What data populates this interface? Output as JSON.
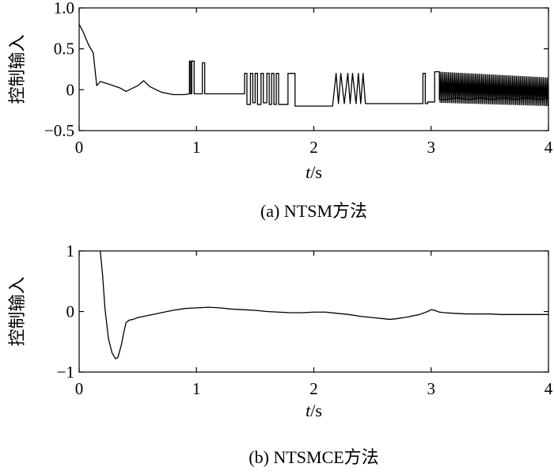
{
  "chart_data": [
    {
      "type": "line",
      "caption": "(a) NTSM方法",
      "ylabel": "控制输入",
      "xlabel_var": "t",
      "xlabel_unit": "/s",
      "xlim": [
        0,
        4
      ],
      "ylim": [
        -0.5,
        1.0
      ],
      "xticks": [
        "0",
        "1",
        "2",
        "3",
        "4"
      ],
      "yticks": [
        {
          "value": 1.0,
          "label": "1.0"
        },
        {
          "value": 0.5,
          "label": "0.5"
        },
        {
          "value": 0,
          "label": "0"
        },
        {
          "value": -0.5,
          "label": "−0.5"
        }
      ],
      "grid": false,
      "series": [
        {
          "line_color": "#000000",
          "x": [
            0,
            0.03,
            0.08,
            0.12,
            0.15,
            0.18,
            0.25,
            0.35,
            0.4,
            0.5,
            0.55,
            0.6,
            0.7,
            0.8,
            0.9,
            0.94,
            0.94,
            0.95,
            0.95,
            0.96,
            0.96,
            0.98,
            0.98,
            1.05,
            1.05,
            1.07,
            1.07,
            1.15,
            1.25,
            1.35,
            1.4,
            1.41,
            1.41,
            1.43,
            1.43,
            1.46,
            1.46,
            1.48,
            1.48,
            1.5,
            1.5,
            1.52,
            1.52,
            1.55,
            1.55,
            1.57,
            1.57,
            1.6,
            1.6,
            1.62,
            1.62,
            1.64,
            1.64,
            1.66,
            1.66,
            1.68,
            1.68,
            1.7,
            1.7,
            1.78,
            1.78,
            1.84,
            1.84,
            1.9,
            2.0,
            2.1,
            2.16,
            2.16,
            2.19,
            2.19,
            2.21,
            2.21,
            2.23,
            2.23,
            2.26,
            2.26,
            2.29,
            2.29,
            2.31,
            2.31,
            2.33,
            2.33,
            2.36,
            2.36,
            2.38,
            2.38,
            2.4,
            2.4,
            2.42,
            2.42,
            2.44,
            2.44,
            2.5,
            2.6,
            2.7,
            2.8,
            2.9,
            2.93,
            2.93,
            2.95,
            2.95,
            2.97,
            2.97,
            3.03,
            3.03,
            3.07,
            3.07,
            3.12,
            3.22,
            3.32,
            3.42,
            3.52,
            3.62,
            3.72,
            3.82,
            3.92,
            4.0
          ],
          "y": [
            0.8,
            0.72,
            0.55,
            0.45,
            0.05,
            0.1,
            0.07,
            0.02,
            -0.02,
            0.05,
            0.11,
            0.04,
            -0.03,
            -0.06,
            -0.06,
            -0.05,
            0.35,
            0.35,
            -0.05,
            -0.05,
            0.35,
            0.35,
            -0.05,
            -0.05,
            0.33,
            0.33,
            -0.05,
            -0.05,
            -0.05,
            -0.05,
            -0.05,
            -0.05,
            0.2,
            0.2,
            -0.18,
            -0.18,
            0.2,
            0.2,
            -0.16,
            -0.16,
            0.2,
            0.2,
            -0.18,
            -0.18,
            0.2,
            0.2,
            -0.16,
            -0.16,
            0.2,
            0.2,
            -0.18,
            -0.18,
            0.2,
            0.2,
            -0.18,
            -0.18,
            0.2,
            0.2,
            -0.18,
            -0.18,
            0.2,
            0.2,
            -0.2,
            -0.2,
            -0.2,
            -0.2,
            -0.2,
            -0.2,
            0.2,
            0.2,
            -0.17,
            -0.17,
            0.2,
            0.2,
            -0.17,
            -0.17,
            0.2,
            0.2,
            -0.17,
            -0.17,
            0.2,
            0.2,
            -0.17,
            -0.17,
            0.2,
            0.2,
            -0.17,
            -0.17,
            0.2,
            0.2,
            -0.17,
            -0.17,
            -0.17,
            -0.17,
            -0.17,
            -0.17,
            -0.17,
            -0.17,
            0.2,
            0.2,
            -0.17,
            -0.17,
            -0.15,
            -0.15,
            0.22,
            0.22,
            -0.12,
            -0.12,
            -0.1,
            -0.12,
            -0.1,
            -0.12,
            -0.1,
            -0.12,
            -0.1,
            -0.12,
            -0.1
          ],
          "chatter_band": {
            "x_start": 3.07,
            "x_end": 4.0,
            "y_top": [
              0.22,
              0.15
            ],
            "y_bottom": [
              -0.16,
              -0.2
            ]
          }
        }
      ]
    },
    {
      "type": "line",
      "caption": "(b) NTSMCE方法",
      "ylabel": "控制输入",
      "xlabel_var": "t",
      "xlabel_unit": "/s",
      "xlim": [
        0,
        4
      ],
      "ylim": [
        -1,
        1
      ],
      "xticks": [
        "0",
        "1",
        "2",
        "3",
        "4"
      ],
      "yticks": [
        {
          "value": 1,
          "label": "1"
        },
        {
          "value": 0,
          "label": "0"
        },
        {
          "value": -1,
          "label": "−1"
        }
      ],
      "grid": false,
      "series": [
        {
          "line_color": "#000000",
          "x": [
            0.18,
            0.2,
            0.22,
            0.25,
            0.28,
            0.31,
            0.33,
            0.36,
            0.38,
            0.4,
            0.43,
            0.46,
            0.5,
            0.6,
            0.7,
            0.8,
            0.9,
            1.0,
            1.1,
            1.2,
            1.3,
            1.4,
            1.5,
            1.6,
            1.7,
            1.8,
            1.9,
            2.0,
            2.1,
            2.2,
            2.3,
            2.4,
            2.5,
            2.6,
            2.65,
            2.7,
            2.8,
            2.9,
            2.97,
            3.0,
            3.03,
            3.07,
            3.12,
            3.2,
            3.3,
            3.4,
            3.5,
            3.6,
            3.7,
            3.8,
            3.9,
            4.0
          ],
          "y": [
            1.0,
            0.6,
            0.05,
            -0.45,
            -0.68,
            -0.78,
            -0.76,
            -0.55,
            -0.35,
            -0.18,
            -0.14,
            -0.13,
            -0.1,
            -0.06,
            -0.02,
            0.02,
            0.05,
            0.06,
            0.07,
            0.06,
            0.04,
            0.03,
            0.02,
            0.0,
            -0.01,
            -0.02,
            -0.02,
            -0.01,
            -0.01,
            -0.03,
            -0.05,
            -0.08,
            -0.1,
            -0.12,
            -0.13,
            -0.12,
            -0.09,
            -0.05,
            0.0,
            0.03,
            0.02,
            -0.01,
            -0.02,
            -0.03,
            -0.04,
            -0.04,
            -0.04,
            -0.05,
            -0.05,
            -0.05,
            -0.05,
            -0.05
          ]
        }
      ]
    }
  ]
}
